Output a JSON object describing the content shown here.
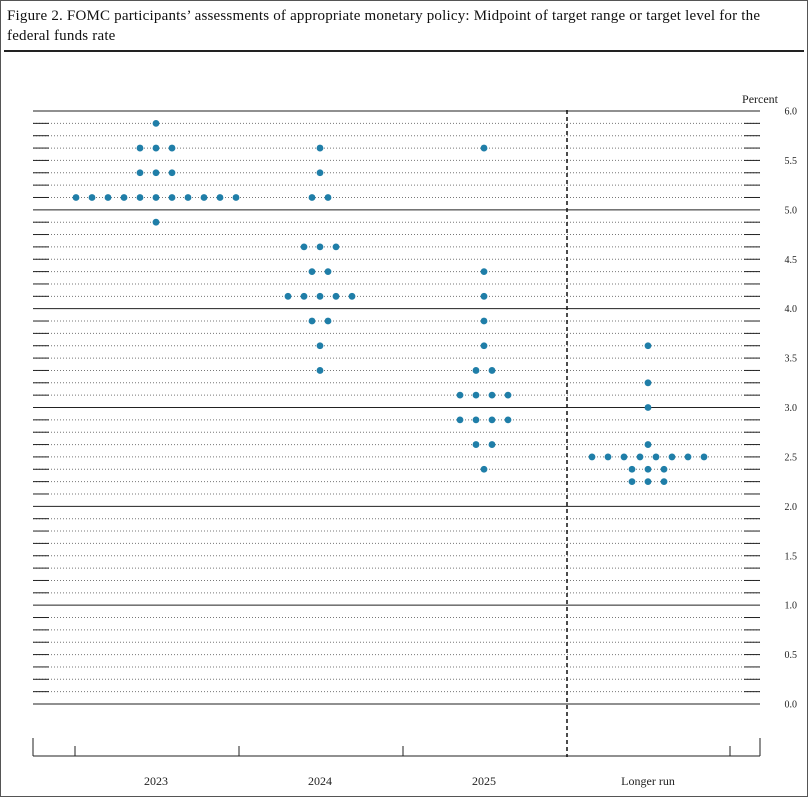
{
  "figure": {
    "title": "Figure 2.  FOMC participants’ assessments of appropriate monetary policy:  Midpoint of target range or target level for the federal funds rate"
  },
  "chart_data": {
    "type": "scatter",
    "title": "Figure 2.  FOMC participants’ assessments of appropriate monetary policy:  Midpoint of target range or target level for the federal funds rate",
    "ylabel": "Percent",
    "xlabel": "",
    "ylim": [
      0,
      6
    ],
    "y_ticks": [
      "6.0",
      "5.5",
      "5.0",
      "4.5",
      "4.0",
      "3.5",
      "3.0",
      "2.5",
      "2.0",
      "1.5",
      "1.0",
      "0.5",
      "0.0"
    ],
    "y_tick_values": [
      6.0,
      5.5,
      5.0,
      4.5,
      4.0,
      3.5,
      3.0,
      2.5,
      2.0,
      1.5,
      1.0,
      0.5,
      0.0
    ],
    "gridline_step": 0.125,
    "grid": true,
    "categories": [
      "2023",
      "2024",
      "2025",
      "Longer run"
    ],
    "divider_before": "Longer run",
    "dot_color": "#1f7ea8",
    "series": [
      {
        "category": "2023",
        "points": [
          {
            "y": 5.875,
            "n": 1
          },
          {
            "y": 5.625,
            "n": 3
          },
          {
            "y": 5.375,
            "n": 3
          },
          {
            "y": 5.125,
            "n": 11
          },
          {
            "y": 4.875,
            "n": 1
          }
        ]
      },
      {
        "category": "2024",
        "points": [
          {
            "y": 5.625,
            "n": 1
          },
          {
            "y": 5.375,
            "n": 1
          },
          {
            "y": 5.125,
            "n": 2
          },
          {
            "y": 4.625,
            "n": 3
          },
          {
            "y": 4.375,
            "n": 2
          },
          {
            "y": 4.125,
            "n": 5
          },
          {
            "y": 3.875,
            "n": 2
          },
          {
            "y": 3.625,
            "n": 1
          },
          {
            "y": 3.375,
            "n": 1
          }
        ]
      },
      {
        "category": "2025",
        "points": [
          {
            "y": 5.625,
            "n": 1
          },
          {
            "y": 4.375,
            "n": 1
          },
          {
            "y": 4.125,
            "n": 1
          },
          {
            "y": 3.875,
            "n": 1
          },
          {
            "y": 3.625,
            "n": 1
          },
          {
            "y": 3.375,
            "n": 2
          },
          {
            "y": 3.125,
            "n": 4
          },
          {
            "y": 2.875,
            "n": 4
          },
          {
            "y": 2.625,
            "n": 2
          },
          {
            "y": 2.375,
            "n": 1
          }
        ]
      },
      {
        "category": "Longer run",
        "points": [
          {
            "y": 3.625,
            "n": 1
          },
          {
            "y": 3.25,
            "n": 1
          },
          {
            "y": 3.0,
            "n": 1
          },
          {
            "y": 2.625,
            "n": 1
          },
          {
            "y": 2.5,
            "n": 8
          },
          {
            "y": 2.375,
            "n": 3
          },
          {
            "y": 2.25,
            "n": 3
          }
        ]
      }
    ]
  }
}
